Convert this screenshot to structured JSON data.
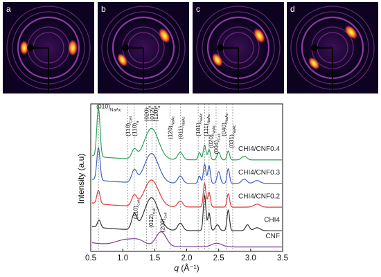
{
  "panels": [
    {
      "label": "a",
      "arcs": [
        {
          "angle": 0,
          "intensity": 1.0
        },
        {
          "angle": 180,
          "intensity": 0.85
        }
      ]
    },
    {
      "label": "b",
      "arcs": [
        {
          "angle": -30,
          "intensity": 1.0
        },
        {
          "angle": 150,
          "intensity": 0.85
        }
      ]
    },
    {
      "label": "c",
      "arcs": [
        {
          "angle": -30,
          "intensity": 1.0
        },
        {
          "angle": 150,
          "intensity": 0.9
        }
      ]
    },
    {
      "label": "d",
      "arcs": [
        {
          "angle": -40,
          "intensity": 1.0
        },
        {
          "angle": 140,
          "intensity": 0.85
        }
      ]
    }
  ],
  "colors": {
    "detector_bg": "#0d0320",
    "ring": "#9c3fb0",
    "hot": "#ffd23a",
    "CNF": "#7b3f9a",
    "CHI4": "#333333",
    "CHI4/CNF0.2": "#e03b3b",
    "CHI4/CNF0.3": "#3a62c8",
    "CHI4/CNF0.4": "#2aa05a"
  },
  "chart_data": {
    "type": "line",
    "title": "",
    "xlabel": "q (Å⁻¹)",
    "xlabel_q": "q",
    "xlabel_unit": " (Å⁻¹)",
    "ylabel": "Intensity (a.u)",
    "xlim": [
      0.5,
      3.5
    ],
    "ylim": [
      0,
      1
    ],
    "xticks": [
      "0.5",
      "1.0",
      "1.5",
      "2.0",
      "2.5",
      "3.0",
      "3.5"
    ],
    "grid": false,
    "legend": "inline-right",
    "series": [
      {
        "name": "CNF",
        "offset": 0.0,
        "baseline": 0.03,
        "peaks": [
          [
            1.05,
            0.04,
            0.15
          ],
          [
            1.26,
            0.03,
            0.1
          ],
          [
            1.6,
            0.1,
            0.08
          ],
          [
            2.47,
            0.025,
            0.08
          ]
        ]
      },
      {
        "name": "CHI4",
        "offset": 0.11,
        "baseline": 0.03,
        "peaks": [
          [
            0.63,
            0.05,
            0.025
          ],
          [
            1.18,
            0.1,
            0.04
          ],
          [
            1.45,
            0.22,
            0.11
          ],
          [
            1.9,
            0.05,
            0.04
          ],
          [
            2.28,
            0.24,
            0.02
          ],
          [
            2.35,
            0.12,
            0.02
          ],
          [
            2.48,
            0.04,
            0.03
          ],
          [
            2.65,
            0.14,
            0.02
          ],
          [
            2.95,
            0.04,
            0.03
          ],
          [
            3.1,
            0.02,
            0.05
          ]
        ]
      },
      {
        "name": "CHI4/CNF0.2",
        "offset": 0.27,
        "baseline": 0.03,
        "peaks": [
          [
            0.62,
            0.09,
            0.025
          ],
          [
            1.18,
            0.07,
            0.04
          ],
          [
            1.45,
            0.18,
            0.11
          ],
          [
            1.9,
            0.04,
            0.04
          ],
          [
            2.28,
            0.16,
            0.02
          ],
          [
            2.35,
            0.1,
            0.02
          ],
          [
            2.65,
            0.09,
            0.02
          ],
          [
            3.1,
            0.02,
            0.05
          ]
        ]
      },
      {
        "name": "CHI4/CNF0.3",
        "offset": 0.43,
        "baseline": 0.03,
        "peaks": [
          [
            0.62,
            0.22,
            0.025
          ],
          [
            1.18,
            0.08,
            0.04
          ],
          [
            1.45,
            0.2,
            0.11
          ],
          [
            1.9,
            0.05,
            0.04
          ],
          [
            2.2,
            0.05,
            0.02
          ],
          [
            2.28,
            0.13,
            0.02
          ],
          [
            2.35,
            0.12,
            0.02
          ],
          [
            2.5,
            0.08,
            0.025
          ],
          [
            2.65,
            0.1,
            0.02
          ],
          [
            2.9,
            0.03,
            0.04
          ],
          [
            3.1,
            0.02,
            0.05
          ]
        ]
      },
      {
        "name": "CHI4/CNF0.4",
        "offset": 0.59,
        "baseline": 0.03,
        "peaks": [
          [
            0.62,
            0.33,
            0.025
          ],
          [
            1.18,
            0.06,
            0.04
          ],
          [
            1.45,
            0.21,
            0.11
          ],
          [
            1.9,
            0.05,
            0.04
          ],
          [
            2.2,
            0.05,
            0.02
          ],
          [
            2.28,
            0.1,
            0.02
          ],
          [
            2.35,
            0.07,
            0.02
          ],
          [
            2.5,
            0.05,
            0.025
          ],
          [
            2.65,
            0.06,
            0.02
          ],
          [
            2.9,
            0.025,
            0.04
          ]
        ]
      }
    ],
    "reference_lines": [
      0.62,
      1.08,
      1.18,
      1.37,
      1.46,
      1.52,
      1.74,
      1.9,
      2.18,
      2.28,
      2.35,
      2.46,
      2.62,
      2.72
    ],
    "peak_labels": [
      {
        "id": "010",
        "main": "(010)",
        "sub": "NaAc",
        "x": 0.62,
        "y": 0.97,
        "size": 10,
        "rotate": false
      },
      {
        "id": "110cell",
        "main": "(110)",
        "sub": "Cell",
        "x": 1.08,
        "y": 0.78,
        "size": 8.5,
        "rotate": true
      },
      {
        "id": "110a",
        "main": "(110)",
        "sub": "a",
        "x": 1.18,
        "y": 0.78,
        "size": 8.5,
        "rotate": true
      },
      {
        "id": "020a",
        "main": "(020)",
        "sub": "a",
        "x": 1.37,
        "y": 0.88,
        "size": 8.5,
        "rotate": true
      },
      {
        "id": "012a",
        "main": "(012)",
        "sub": "a",
        "x": 1.46,
        "y": 0.88,
        "size": 8.5,
        "rotate": true
      },
      {
        "id": "120a",
        "main": "(120)",
        "sub": "a",
        "x": 1.52,
        "y": 0.88,
        "size": 8.5,
        "rotate": true
      },
      {
        "id": "120naac",
        "main": "(120)",
        "sub": "NaAc",
        "x": 1.74,
        "y": 0.76,
        "size": 8.5,
        "rotate": true
      },
      {
        "id": "011",
        "main": "(011)",
        "sub": "NaAc",
        "x": 1.9,
        "y": 0.76,
        "size": 8.5,
        "rotate": true
      },
      {
        "id": "101",
        "main": "(101)",
        "sub": "NaAc",
        "x": 2.18,
        "y": 0.78,
        "size": 8.5,
        "rotate": true
      },
      {
        "id": "111",
        "main": "(111)",
        "sub": "NaAc",
        "x": 2.3,
        "y": 0.78,
        "size": 8.5,
        "rotate": true
      },
      {
        "id": "020naac",
        "main": "(020)",
        "sub": "NaAc",
        "x": 2.38,
        "y": 0.7,
        "size": 8.5,
        "rotate": true
      },
      {
        "id": "004",
        "main": "(004)",
        "sub": "Cell",
        "x": 2.46,
        "y": 0.66,
        "size": 8.5,
        "rotate": true
      },
      {
        "id": "040",
        "main": "(040)",
        "sub": "NaAc",
        "x": 2.58,
        "y": 0.78,
        "size": 8.5,
        "rotate": true
      },
      {
        "id": "031",
        "main": "(031)",
        "sub": "NaAc",
        "x": 2.7,
        "y": 0.7,
        "size": 8.5,
        "rotate": true
      },
      {
        "id": "110cell_low",
        "main": "(110)",
        "sub": "Cell",
        "x": 1.2,
        "y": 0.22,
        "size": 7.5,
        "rotate": true
      },
      {
        "id": "012cell",
        "main": "(012)",
        "sub": "Cell",
        "x": 1.44,
        "y": 0.16,
        "size": 7.5,
        "rotate": true
      },
      {
        "id": "200cell",
        "main": "(200)",
        "sub": "Cell",
        "x": 1.62,
        "y": 0.13,
        "size": 7.5,
        "rotate": true
      }
    ]
  }
}
